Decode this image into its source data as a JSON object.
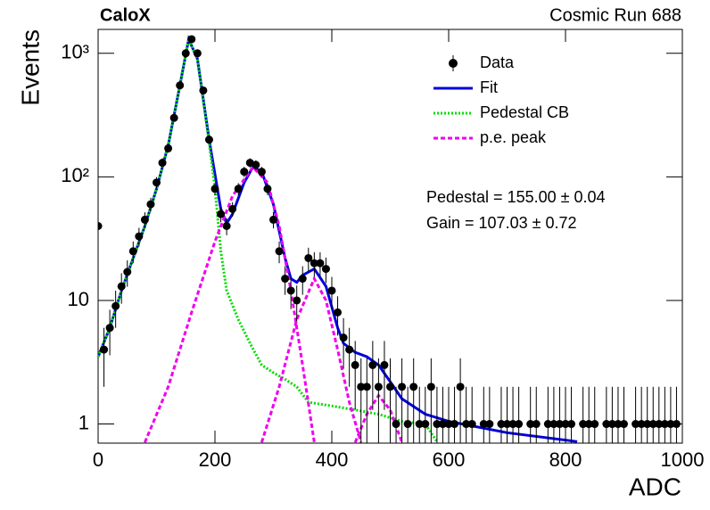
{
  "chart_data": {
    "type": "histfit",
    "title": "CaloX",
    "subtitle": "Cosmic Run 688",
    "x_label": "ADC",
    "y_label": "Events",
    "annotations": [
      "Pedestal = 155.00 ± 0.04",
      "Gain = 107.03 ± 0.72"
    ],
    "log_y": true,
    "legend": "top right",
    "xlim": [
      0,
      1000
    ],
    "xticks": [
      0,
      200,
      400,
      600,
      800,
      1000
    ],
    "ylim": [
      0.7,
      1560
    ],
    "yticks": [
      1,
      10,
      {
        "value": 100,
        "label": "10²"
      },
      {
        "value": 1000,
        "label": "10³"
      }
    ],
    "data": {
      "name": "Data",
      "color": "#000000",
      "x": [
        0,
        10,
        20,
        30,
        40,
        50,
        60,
        70,
        80,
        90,
        100,
        110,
        120,
        130,
        140,
        150,
        160,
        170,
        180,
        190,
        200,
        210,
        220,
        230,
        240,
        250,
        260,
        270,
        280,
        290,
        300,
        310,
        320,
        330,
        340,
        350,
        360,
        370,
        380,
        390,
        400,
        410,
        420,
        430,
        440,
        450,
        460,
        470,
        480,
        490,
        500,
        510,
        520,
        530,
        540,
        550,
        560,
        570,
        580,
        590,
        600,
        610,
        620,
        630,
        640,
        650,
        660,
        670,
        680,
        690,
        700,
        710,
        720,
        730,
        740,
        750,
        760,
        770,
        780,
        790,
        800,
        810,
        820,
        830,
        840,
        850,
        860,
        870,
        880,
        890,
        900,
        910,
        920,
        930,
        940,
        950,
        960,
        970,
        980,
        990
      ],
      "values": [
        40,
        4,
        6,
        9,
        13,
        17,
        25,
        33,
        45,
        60,
        90,
        130,
        170,
        300,
        550,
        1000,
        1300,
        1000,
        500,
        200,
        80,
        50,
        40,
        55,
        80,
        110,
        130,
        125,
        110,
        80,
        45,
        25,
        15,
        12,
        10,
        15,
        22,
        20,
        20,
        18,
        12,
        8,
        5,
        4,
        3,
        2,
        2,
        3,
        2,
        3,
        2,
        1,
        2,
        1,
        2,
        1,
        1,
        2,
        1,
        1,
        1,
        1,
        2,
        1,
        1,
        null,
        1,
        1,
        null,
        1,
        1,
        1,
        1,
        null,
        1,
        1,
        null,
        1,
        1,
        1,
        1,
        1,
        null,
        1,
        1,
        1,
        null,
        1,
        1,
        1,
        1,
        null,
        1,
        1,
        1,
        1,
        1,
        1,
        1,
        1
      ],
      "errors": [
        6.3,
        2,
        2.4,
        3,
        3.6,
        4.1,
        5,
        5.7,
        6.7,
        7.7,
        9.5,
        11.4,
        13,
        17.3,
        23.5,
        31.6,
        36.1,
        31.6,
        22.4,
        14.1,
        8.9,
        7.1,
        6.3,
        7.4,
        8.9,
        10.5,
        11.4,
        11.2,
        10.5,
        8.9,
        6.7,
        5,
        3.9,
        3.5,
        3.2,
        3.9,
        4.7,
        4.5,
        4.5,
        4.2,
        3.5,
        2.8,
        2.2,
        2,
        1.7,
        1.4,
        1.4,
        1.7,
        1.4,
        1.7,
        1.4,
        1,
        1.4,
        1,
        1.4,
        1,
        1,
        1.4,
        1,
        1,
        1,
        1,
        1.4,
        1,
        1,
        null,
        1,
        1,
        null,
        1,
        1,
        1,
        1,
        null,
        1,
        1,
        null,
        1,
        1,
        1,
        1,
        1,
        null,
        1,
        1,
        1,
        null,
        1,
        1,
        1,
        1,
        null,
        1,
        1,
        1,
        1,
        1,
        1,
        1,
        1
      ]
    },
    "series": [
      {
        "name": "Fit",
        "color": "#0000dd",
        "style": "solid",
        "x": [
          0,
          20,
          40,
          60,
          80,
          100,
          120,
          140,
          155,
          170,
          190,
          210,
          220,
          230,
          250,
          265,
          280,
          300,
          320,
          330,
          340,
          350,
          370,
          390,
          410,
          420,
          440,
          460,
          480,
          500,
          520,
          560,
          600,
          700,
          820
        ],
        "values": [
          3.5,
          6,
          12,
          22,
          40,
          80,
          180,
          550,
          1300,
          900,
          200,
          55,
          42,
          50,
          90,
          120,
          110,
          60,
          22,
          15,
          14,
          16,
          18,
          13,
          6,
          4.5,
          3.8,
          3.5,
          3,
          2.2,
          1.6,
          1.2,
          1.05,
          0.85,
          0.72
        ]
      },
      {
        "name": "Pedestal CB",
        "color": "#00dd00",
        "style": "dotted",
        "x": [
          0,
          20,
          40,
          60,
          80,
          100,
          120,
          140,
          155,
          170,
          190,
          200,
          210,
          220,
          240,
          260,
          280,
          300,
          320,
          340,
          360,
          400,
          440,
          480,
          520,
          560,
          580
        ],
        "values": [
          3.5,
          6,
          12,
          22,
          40,
          80,
          180,
          550,
          1300,
          900,
          190,
          80,
          25,
          12,
          7,
          4.5,
          3,
          2.6,
          2.3,
          2,
          1.5,
          1.4,
          1.3,
          1.2,
          1.05,
          1,
          0.72
        ]
      },
      {
        "name": "p.e. peak",
        "color": "#ee00ee",
        "style": "dashed",
        "pieces": [
          {
            "x": [
              80,
              120,
              160,
              200,
              230,
              265,
              290,
              310,
              330,
              350,
              370
            ],
            "values": [
              0.71,
              2,
              8,
              30,
              70,
              120,
              90,
              40,
              12,
              3,
              0.71
            ]
          },
          {
            "x": [
              280,
              310,
              340,
              370,
              390,
              410,
              430,
              450
            ],
            "values": [
              0.71,
              2,
              7,
              15,
              10,
              4,
              1.5,
              0.71
            ]
          },
          {
            "x": [
              440,
              460,
              480,
              500,
              520
            ],
            "values": [
              0.71,
              1.2,
              1.7,
              1.3,
              0.71
            ]
          }
        ]
      }
    ]
  }
}
